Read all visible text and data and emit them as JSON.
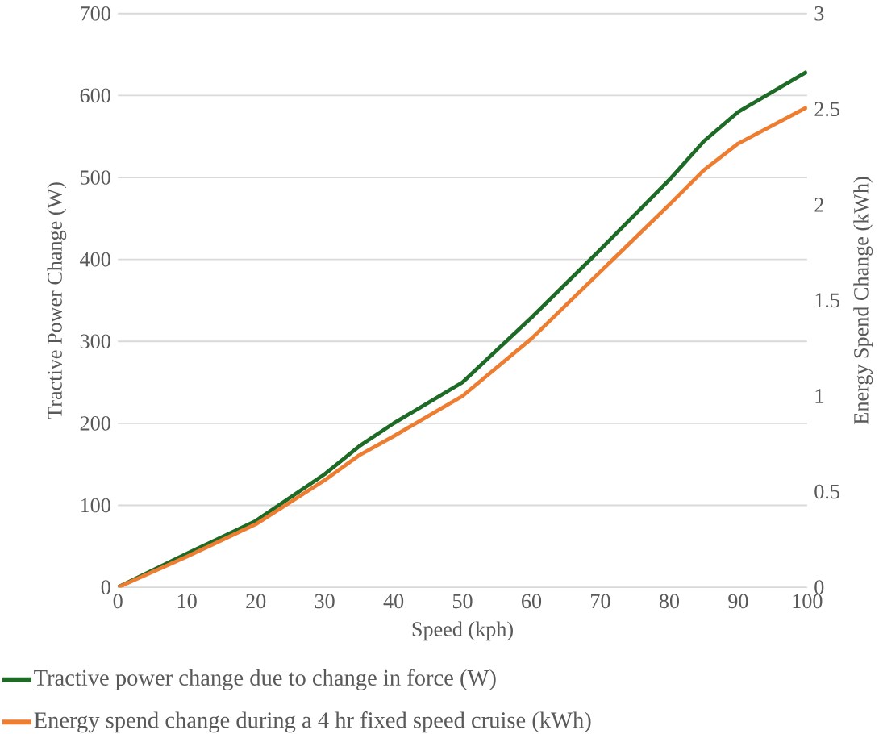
{
  "chart_data": {
    "type": "line",
    "xlabel": "Speed (kph)",
    "ylabel": "Tractive Power Change (W)",
    "y2label": "Energy Spend Change (kWh)",
    "x": [
      0,
      10,
      20,
      30,
      35,
      40,
      50,
      60,
      70,
      80,
      85,
      90,
      100
    ],
    "series": [
      {
        "name": "Tractive power change due to change in force (W)",
        "color": "#1e6b27",
        "values": [
          0,
          41,
          81,
          138,
          172,
          200,
          250,
          329,
          412,
          497,
          544,
          580,
          629
        ]
      },
      {
        "name": "Energy spend change during a 4 hr fixed speed cruise (kWh)",
        "color": "#ed7d31",
        "axis": "y2",
        "values": [
          0,
          0.16,
          0.33,
          0.56,
          0.69,
          0.79,
          1.0,
          1.3,
          1.65,
          2.0,
          2.18,
          2.32,
          2.51
        ]
      }
    ],
    "xlim": [
      0,
      100
    ],
    "xticks": [
      0,
      10,
      20,
      30,
      40,
      50,
      60,
      70,
      80,
      90,
      100
    ],
    "ylim": [
      0,
      700
    ],
    "yticks": [
      0,
      100,
      200,
      300,
      400,
      500,
      600,
      700
    ],
    "y2lim": [
      0,
      3
    ],
    "y2ticks": [
      0,
      0.5,
      1,
      1.5,
      2,
      2.5,
      3
    ],
    "grid": "y",
    "legend": "bottom",
    "marker": "none",
    "line_style": "solid"
  }
}
